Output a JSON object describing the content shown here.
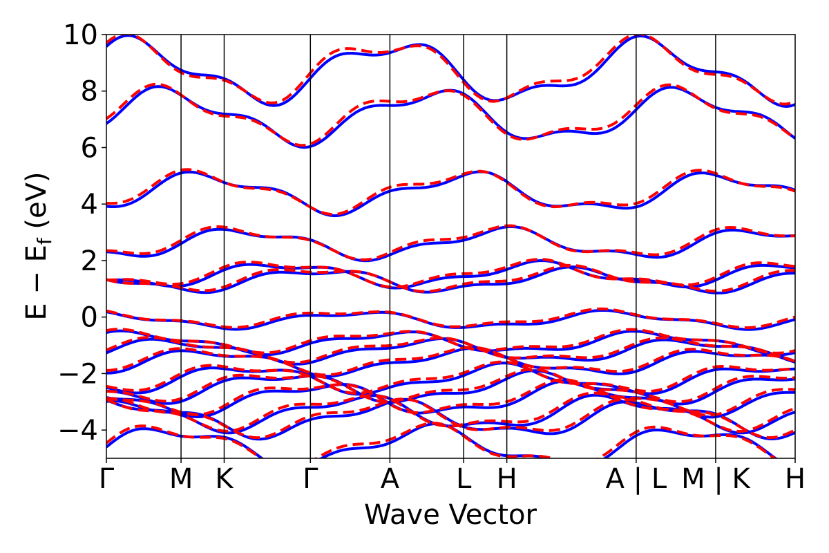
{
  "chart_data": {
    "type": "line",
    "xlabel": "Wave Vector",
    "ylabel_parts": {
      "main": "E − E",
      "sub": "f",
      "unit": " (eV)"
    },
    "ylim": [
      -5,
      10
    ],
    "yticks": [
      -4,
      -2,
      0,
      2,
      4,
      6,
      8,
      10
    ],
    "ytick_labels": [
      "−4",
      "−2",
      "0",
      "2",
      "4",
      "6",
      "8",
      "10"
    ],
    "kpoints": [
      {
        "label": "Γ",
        "x": 0.0
      },
      {
        "label": "M",
        "x": 0.866
      },
      {
        "label": "K",
        "x": 1.366
      },
      {
        "label": "Γ",
        "x": 2.366
      },
      {
        "label": "A",
        "x": 3.288
      },
      {
        "label": "L",
        "x": 4.144
      },
      {
        "label": "H",
        "x": 4.644
      },
      {
        "label": "A | L",
        "x": 6.144
      },
      {
        "label": "M | K",
        "x": 7.066
      },
      {
        "label": "H",
        "x": 7.988
      }
    ],
    "xlim": [
      0,
      7.988
    ],
    "series": [
      {
        "style": "solid",
        "color": "#0000ff",
        "bands": []
      },
      {
        "style": "dashed",
        "color": "#ff0000",
        "bands": []
      }
    ],
    "band_energies_at_gamma": [
      -4.6,
      -3.6,
      -3.4,
      -2.9,
      -2.5,
      -2.2,
      -1.6,
      -1.2,
      -0.9,
      -0.1,
      1.3,
      1.5,
      2.6,
      4.4,
      7.1,
      8.7
    ]
  }
}
